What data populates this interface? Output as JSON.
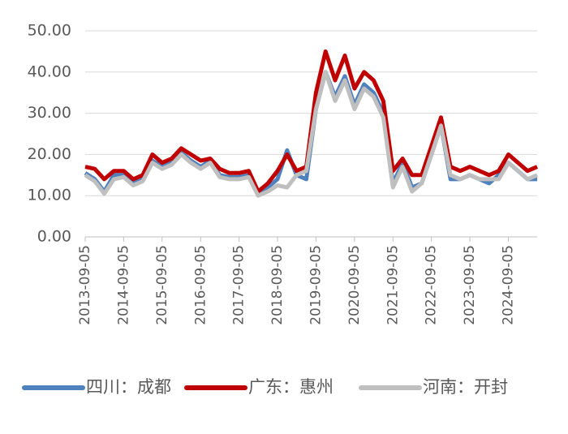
{
  "chart_data": {
    "type": "line",
    "x": [
      "2013-09-05",
      "2013-12-05",
      "2014-03-05",
      "2014-06-05",
      "2014-09-05",
      "2014-12-05",
      "2015-03-05",
      "2015-06-05",
      "2015-09-05",
      "2015-12-05",
      "2016-03-05",
      "2016-06-05",
      "2016-09-05",
      "2016-12-05",
      "2017-03-05",
      "2017-06-05",
      "2017-09-05",
      "2017-12-05",
      "2018-03-05",
      "2018-06-05",
      "2018-09-05",
      "2018-12-05",
      "2019-03-05",
      "2019-06-05",
      "2019-09-05",
      "2019-12-05",
      "2020-03-05",
      "2020-06-05",
      "2020-09-05",
      "2020-12-05",
      "2021-03-05",
      "2021-06-05",
      "2021-09-05",
      "2021-12-05",
      "2022-03-05",
      "2022-06-05",
      "2022-09-05",
      "2022-12-05",
      "2023-03-05",
      "2023-06-05",
      "2023-09-05",
      "2023-12-05",
      "2024-03-05",
      "2024-06-05",
      "2024-09-05",
      "2024-12-05",
      "2025-03-05",
      "2025-06-05"
    ],
    "series": [
      {
        "name": "四川：成都",
        "color": "#4f81bd",
        "values": [
          15.5,
          14,
          11,
          15,
          15,
          13,
          14,
          18.5,
          17,
          18,
          20.5,
          18.5,
          17,
          18.5,
          15,
          14.5,
          14.5,
          15,
          10.5,
          12,
          14,
          21,
          15,
          14,
          31,
          40,
          34,
          39,
          32,
          37,
          35,
          30,
          13,
          18,
          12,
          13,
          20,
          27,
          14,
          14,
          15,
          14,
          13,
          15,
          18,
          16,
          14,
          14
        ]
      },
      {
        "name": "广东：惠州",
        "color": "#c00000",
        "values": [
          17,
          16.5,
          14,
          16,
          16,
          14,
          15,
          20,
          18,
          19,
          21.5,
          20,
          18.5,
          19,
          16.5,
          15.5,
          15.5,
          16,
          11,
          13,
          16,
          20,
          16,
          17,
          35,
          45,
          38,
          44,
          36,
          40,
          38,
          33,
          16,
          19,
          15,
          15,
          22,
          29,
          17,
          16,
          17,
          16,
          15,
          16,
          20,
          18,
          16,
          17
        ]
      },
      {
        "name": "河南：开封",
        "color": "#bfbfbf",
        "values": [
          15,
          13.5,
          10.5,
          14,
          14.5,
          12.5,
          13.5,
          18,
          16.5,
          17.5,
          20,
          18,
          16.5,
          18,
          14.5,
          14,
          14,
          14.5,
          10,
          11,
          12.5,
          12,
          15,
          16,
          31,
          40,
          33,
          38,
          31,
          36,
          34,
          29,
          12,
          17,
          11,
          13,
          20,
          27,
          15,
          14,
          15,
          14,
          14,
          14,
          18,
          16,
          14,
          15
        ]
      }
    ],
    "xlim": [
      "2013-09-05",
      "2025-06-05"
    ],
    "xticks": [
      "2013-09-05",
      "2014-09-05",
      "2015-09-05",
      "2016-09-05",
      "2017-09-05",
      "2018-09-05",
      "2019-09-05",
      "2020-09-05",
      "2021-09-05",
      "2022-09-05",
      "2023-09-05",
      "2024-09-05"
    ],
    "ylim": [
      0,
      50
    ],
    "yticks": [
      {
        "value": 0,
        "label": "0.00"
      },
      {
        "value": 10,
        "label": "10.00"
      },
      {
        "value": 20,
        "label": "20.00"
      },
      {
        "value": 30,
        "label": "30.00"
      },
      {
        "value": 40,
        "label": "40.00"
      },
      {
        "value": 50,
        "label": "50.00"
      }
    ],
    "grid": true
  }
}
